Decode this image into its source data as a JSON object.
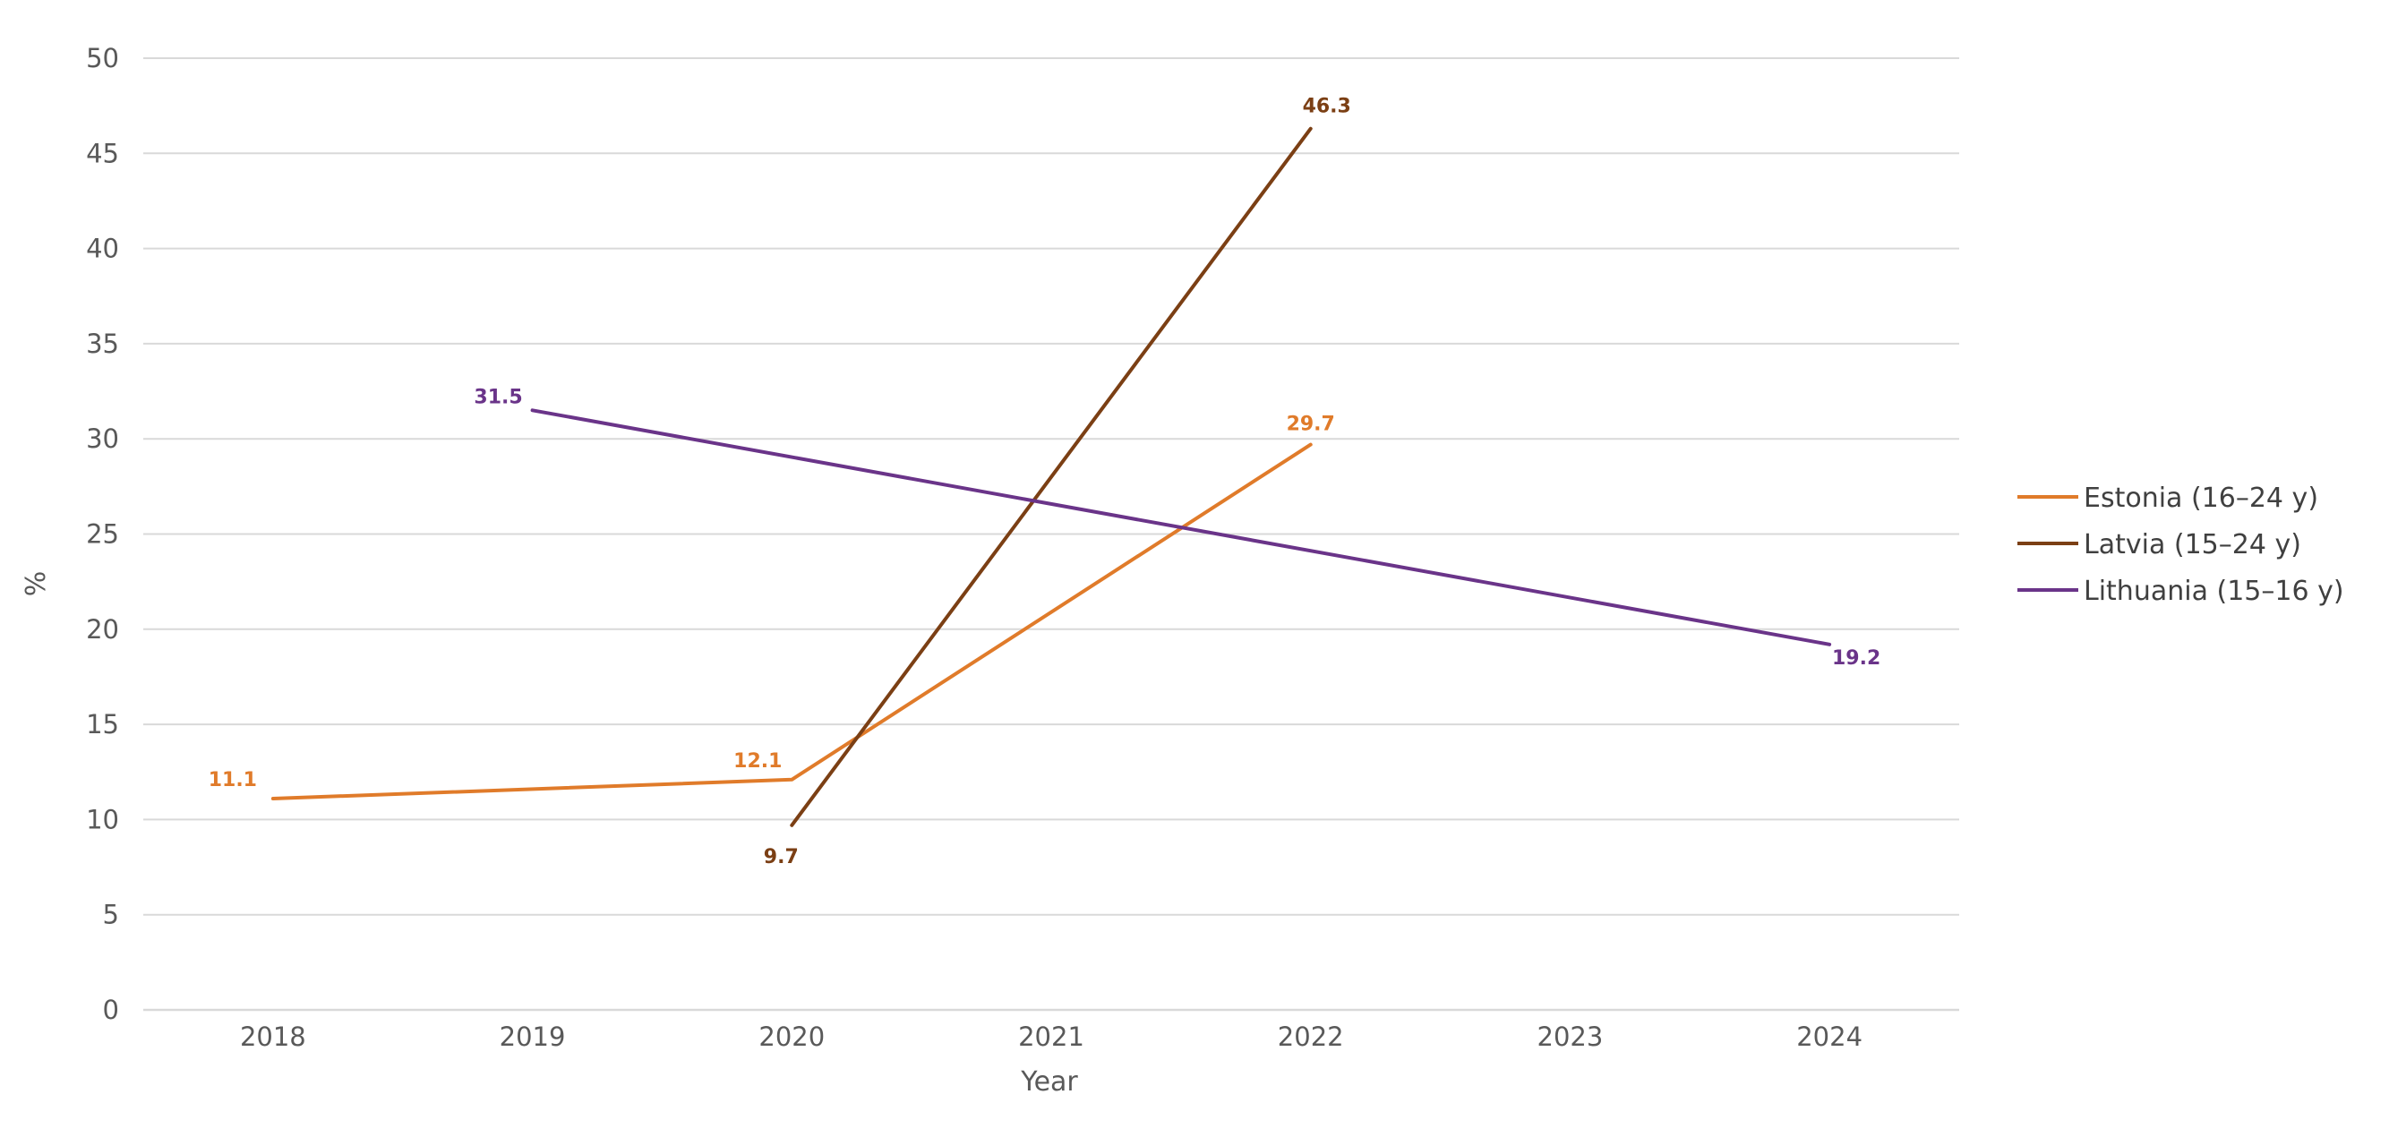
{
  "chart_data": {
    "type": "line",
    "title": "",
    "xlabel": "Year",
    "ylabel": "%",
    "x": [
      "2018",
      "2019",
      "2020",
      "2021",
      "2022",
      "2023",
      "2024"
    ],
    "y_ticks": [
      "0",
      "5",
      "10",
      "15",
      "20",
      "25",
      "30",
      "35",
      "40",
      "45",
      "50"
    ],
    "ylim": [
      0,
      50
    ],
    "grid": "horizontal",
    "legend_position": "right",
    "series": [
      {
        "name": "Estonia (16–24 y)",
        "color": "#e07b2a",
        "points": [
          {
            "x": "2018",
            "y": 11.1,
            "label": "11.1"
          },
          {
            "x": "2020",
            "y": 12.1,
            "label": "12.1"
          },
          {
            "x": "2022",
            "y": 29.7,
            "label": "29.7"
          }
        ]
      },
      {
        "name": "Latvia (15–24 y)",
        "color": "#7b3f14",
        "points": [
          {
            "x": "2020",
            "y": 9.7,
            "label": "9.7"
          },
          {
            "x": "2022",
            "y": 46.3,
            "label": "46.3"
          }
        ]
      },
      {
        "name": "Lithuania (15–16 y)",
        "color": "#6a3489",
        "points": [
          {
            "x": "2019",
            "y": 31.5,
            "label": "31.5"
          },
          {
            "x": "2024",
            "y": 19.2,
            "label": "19.2"
          }
        ]
      }
    ]
  }
}
